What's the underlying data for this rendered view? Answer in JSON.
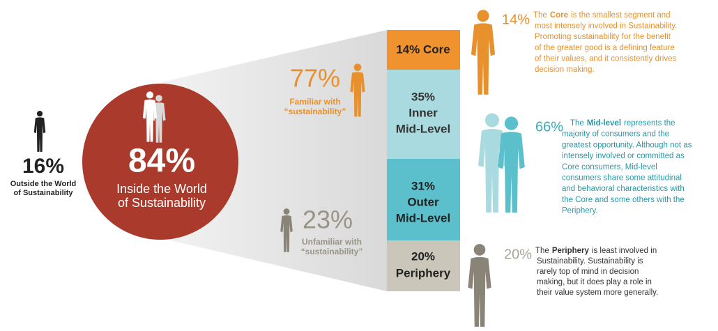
{
  "left": {
    "percent": "16%",
    "label": [
      "Outside the World",
      "of Sustainability"
    ]
  },
  "circle": {
    "percent": "84%",
    "label": [
      "Inside the World",
      "of Sustainability"
    ]
  },
  "familiar": {
    "percent": "77%",
    "label": [
      "Familiar with",
      "“sustainability”"
    ]
  },
  "unfamiliar": {
    "percent": "23%",
    "label": [
      "Unfamiliar with",
      "“sustainability”"
    ]
  },
  "bar": [
    [
      "14% Core"
    ],
    [
      "35%",
      "Inner",
      "Mid-Level"
    ],
    [
      "31%",
      "Outer",
      "Mid-Level"
    ],
    [
      "20%",
      "Periphery"
    ]
  ],
  "segments": [
    {
      "percent": "14%",
      "lead": "The",
      "keyword": "Core",
      "lines": [
        "is the smallest segment and",
        "most intensely involved in Sustainability.",
        "Promoting sustainability for the benefit",
        "of the greater good is a defining feature",
        "of their values, and it consistently drives",
        "decision making."
      ]
    },
    {
      "percent": "66%",
      "lead": "The",
      "keyword": "Mid-level",
      "lines": [
        "represents the",
        "majority of consumers and the",
        "greatest opportunity. Although not as",
        "intensely involved or committed as",
        "Core consumers, Mid-level",
        "consumers share some attitudinal",
        "and behavioral characteristics with",
        "the Core and some others with the",
        "Periphery."
      ]
    },
    {
      "percent": "20%",
      "lead": "The",
      "keyword": "Periphery",
      "lines": [
        "is least involved in",
        "Sustainability. Sustainability is",
        "rarely top of mind in decision",
        "making, but it does play a role in",
        "their value system more generally."
      ]
    }
  ]
}
